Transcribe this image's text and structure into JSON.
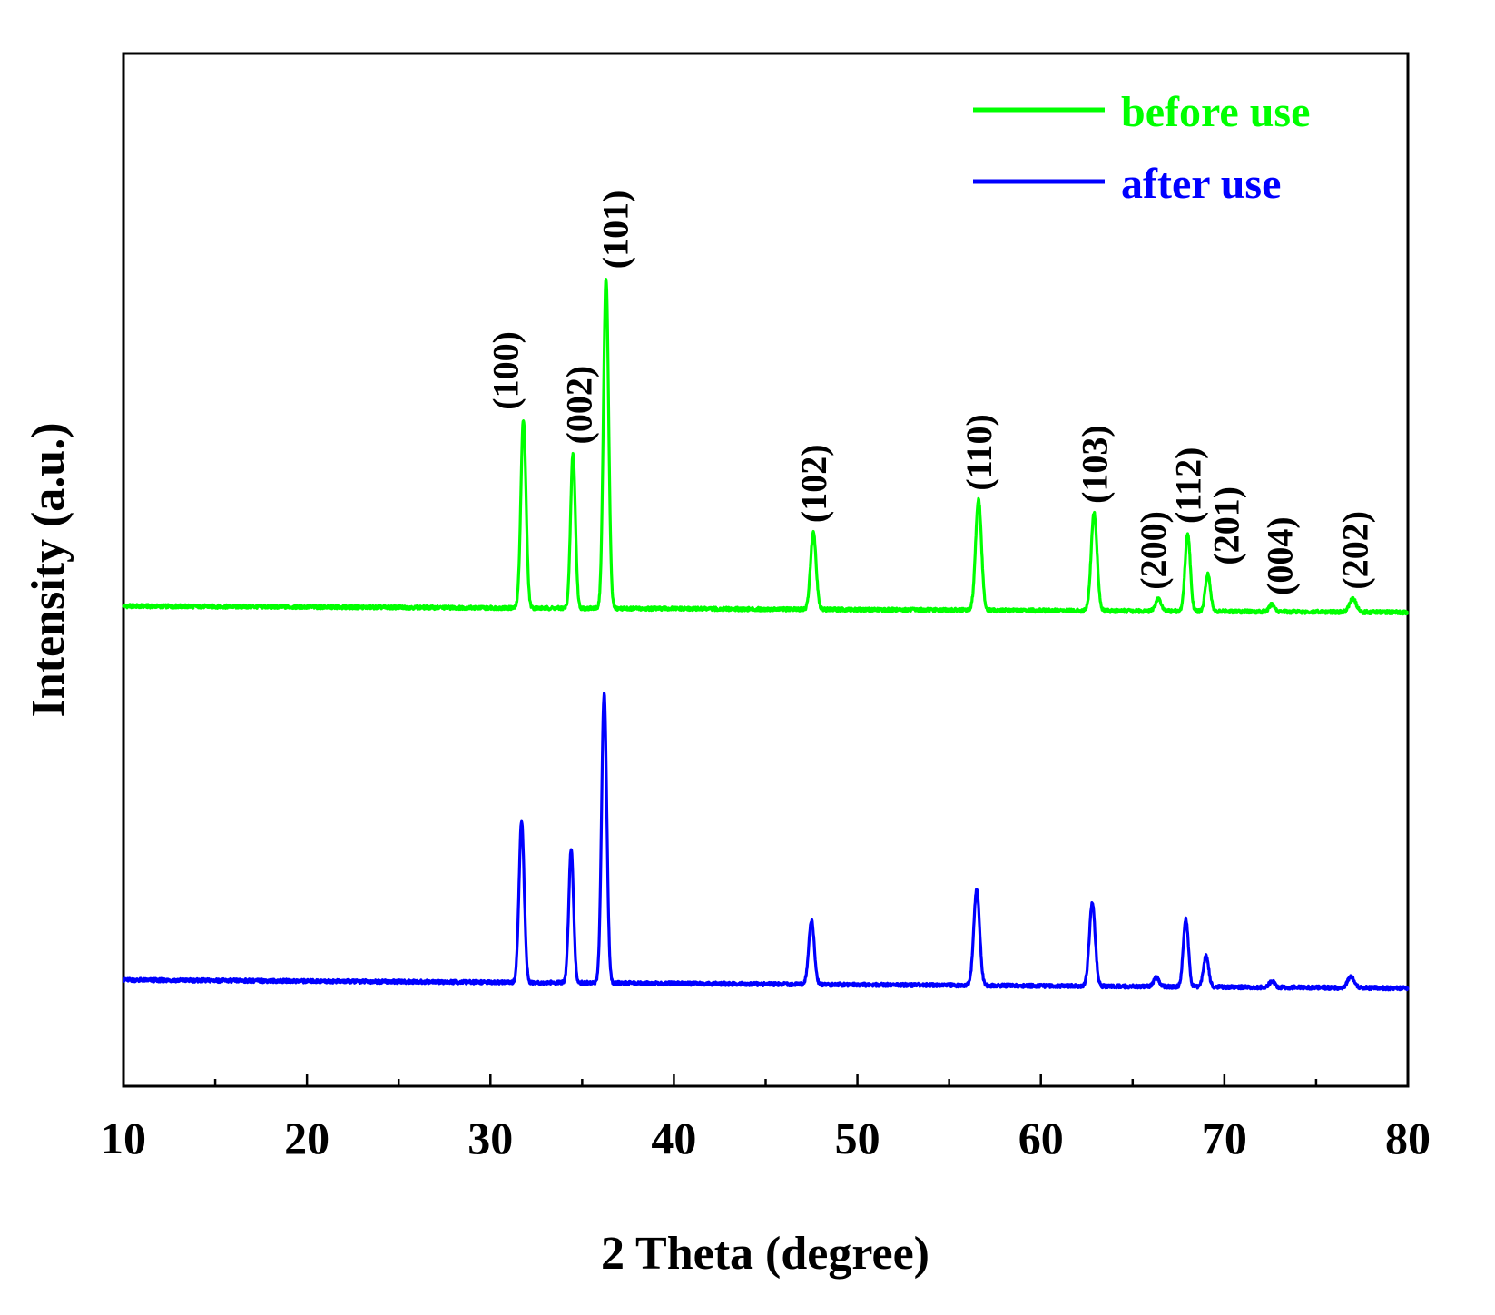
{
  "chart_data": {
    "type": "line",
    "title": "",
    "xlabel": "2 Theta (degree)",
    "ylabel": "Intensity (a.u.)",
    "xlim": [
      10,
      80
    ],
    "ylim": [
      0,
      1
    ],
    "x_ticks": [
      "10",
      "20",
      "30",
      "40",
      "50",
      "60",
      "70",
      "80"
    ],
    "y_ticks": [],
    "legend_position": "top-right",
    "series": [
      {
        "name": "before use",
        "color": "#00ff00",
        "baseline_start": 0.465,
        "baseline_end": 0.459,
        "peaks": [
          {
            "x": 31.8,
            "height": 0.183,
            "width": 0.14
          },
          {
            "x": 34.5,
            "height": 0.15,
            "width": 0.13
          },
          {
            "x": 36.3,
            "height": 0.32,
            "width": 0.14
          },
          {
            "x": 47.6,
            "height": 0.075,
            "width": 0.15
          },
          {
            "x": 56.6,
            "height": 0.107,
            "width": 0.16
          },
          {
            "x": 62.9,
            "height": 0.095,
            "width": 0.16
          },
          {
            "x": 66.4,
            "height": 0.012,
            "width": 0.15
          },
          {
            "x": 68.0,
            "height": 0.076,
            "width": 0.14
          },
          {
            "x": 69.1,
            "height": 0.036,
            "width": 0.14
          },
          {
            "x": 72.6,
            "height": 0.007,
            "width": 0.15
          },
          {
            "x": 77.0,
            "height": 0.013,
            "width": 0.18
          }
        ]
      },
      {
        "name": "after use",
        "color": "#0000ff",
        "baseline_start": 0.103,
        "baseline_end": 0.095,
        "peaks": [
          {
            "x": 31.7,
            "height": 0.156,
            "width": 0.14
          },
          {
            "x": 34.4,
            "height": 0.13,
            "width": 0.13
          },
          {
            "x": 36.2,
            "height": 0.28,
            "width": 0.14
          },
          {
            "x": 47.5,
            "height": 0.062,
            "width": 0.15
          },
          {
            "x": 56.5,
            "height": 0.092,
            "width": 0.16
          },
          {
            "x": 62.8,
            "height": 0.08,
            "width": 0.16
          },
          {
            "x": 66.3,
            "height": 0.009,
            "width": 0.15
          },
          {
            "x": 67.9,
            "height": 0.065,
            "width": 0.14
          },
          {
            "x": 69.0,
            "height": 0.03,
            "width": 0.14
          },
          {
            "x": 72.6,
            "height": 0.006,
            "width": 0.15
          },
          {
            "x": 76.9,
            "height": 0.011,
            "width": 0.18
          }
        ]
      }
    ],
    "annotations": [
      {
        "text": "(100)",
        "x": 31.8
      },
      {
        "text": "(002)",
        "x": 34.5
      },
      {
        "text": "(101)",
        "x": 36.3
      },
      {
        "text": "(102)",
        "x": 47.6
      },
      {
        "text": "(110)",
        "x": 56.6
      },
      {
        "text": "(103)",
        "x": 62.9
      },
      {
        "text": "(200)",
        "x": 66.4
      },
      {
        "text": "(112)",
        "x": 68.0
      },
      {
        "text": "(201)",
        "x": 69.1
      },
      {
        "text": "(004)",
        "x": 72.6
      },
      {
        "text": "(202)",
        "x": 77.0
      }
    ]
  }
}
